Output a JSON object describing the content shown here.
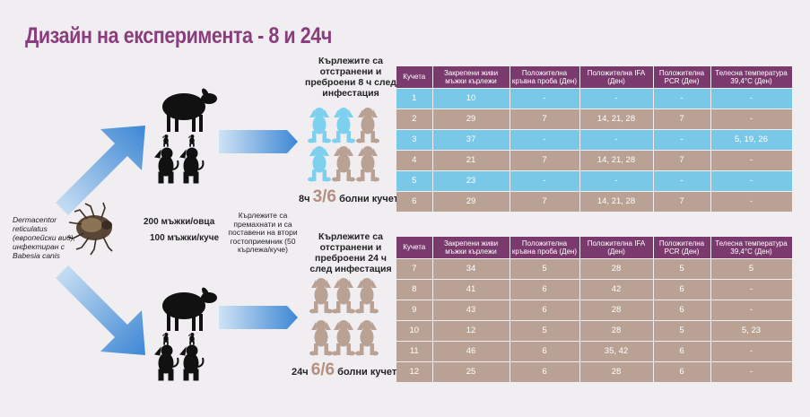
{
  "title": "Дизайн на експеримента - 8 и 24ч",
  "tick_label": "Dermacentor reticulatus (европейски вид), инфектиран с Babesia canis",
  "dose_sheep": "200 мъжки/овца",
  "dose_dog": "100 мъжки/куче",
  "middle_note": "Кърлежите са премахнати и са поставени на втори гостоприемник (50 кърлежа/куче)",
  "caption_8h": "Кърлежите са отстранени и преброени 8 ч след инфестация",
  "caption_24h": "Кърлежите са отстранени и преброени 24 ч след инфестация",
  "result_8h": {
    "prefix": "8ч",
    "value": "3/6",
    "suffix": "болни кучета"
  },
  "result_24h": {
    "prefix": "24ч",
    "value": "6/6",
    "suffix": "болни кучета"
  },
  "colors": {
    "title": "#8a3d7d",
    "header": "#7b3a6e",
    "blue": "#7ac8e8",
    "tan": "#b9a194",
    "arrow": "#4a90d9"
  },
  "table_headers": [
    "Кучета",
    "Закрепени живи мъжки кърлежи",
    "Положителна кръвна проба (Ден)",
    "Положителна IFA (Ден)",
    "Положителна PCR (Ден)",
    "Телесна температура 39,4°C (Ден)"
  ],
  "table_8h": [
    {
      "style": "blue",
      "cells": [
        "1",
        "10",
        "-",
        "-",
        "-",
        "-"
      ]
    },
    {
      "style": "tan",
      "cells": [
        "2",
        "29",
        "7",
        "14, 21, 28",
        "7",
        "-"
      ]
    },
    {
      "style": "blue",
      "cells": [
        "3",
        "37",
        "-",
        "-",
        "-",
        "5, 19, 26"
      ]
    },
    {
      "style": "tan",
      "cells": [
        "4",
        "21",
        "7",
        "14, 21, 28",
        "7",
        "-"
      ]
    },
    {
      "style": "blue",
      "cells": [
        "5",
        "23",
        "-",
        "-",
        "-",
        "-"
      ]
    },
    {
      "style": "tan",
      "cells": [
        "6",
        "29",
        "7",
        "14, 21, 28",
        "7",
        "-"
      ]
    }
  ],
  "table_24h": [
    {
      "style": "tan",
      "cells": [
        "7",
        "34",
        "5",
        "28",
        "5",
        "5"
      ]
    },
    {
      "style": "tan",
      "cells": [
        "8",
        "41",
        "6",
        "42",
        "6",
        "-"
      ]
    },
    {
      "style": "tan",
      "cells": [
        "9",
        "43",
        "6",
        "28",
        "6",
        "-"
      ]
    },
    {
      "style": "tan",
      "cells": [
        "10",
        "12",
        "5",
        "28",
        "5",
        "5, 23"
      ]
    },
    {
      "style": "tan",
      "cells": [
        "11",
        "46",
        "6",
        "35, 42",
        "6",
        "-"
      ]
    },
    {
      "style": "tan",
      "cells": [
        "12",
        "25",
        "6",
        "28",
        "6",
        "-"
      ]
    }
  ]
}
